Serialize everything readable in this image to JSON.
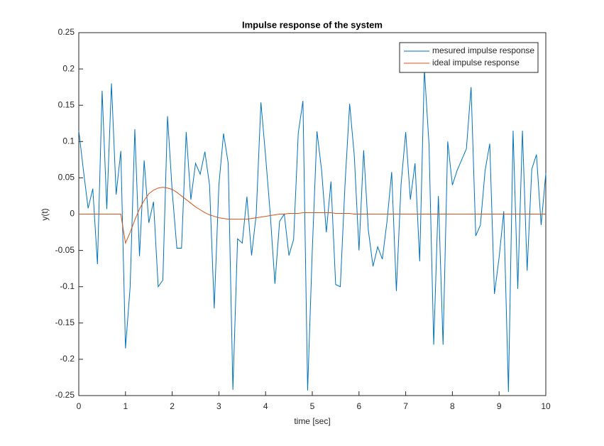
{
  "chart_data": {
    "type": "line",
    "title": "Impulse response of the system",
    "xlabel": "time [sec]",
    "ylabel": "y(t)",
    "x": [
      0,
      0.1,
      0.2,
      0.3,
      0.4,
      0.5,
      0.6,
      0.7,
      0.8,
      0.9,
      1,
      1.1,
      1.2,
      1.3,
      1.4,
      1.5,
      1.6,
      1.7,
      1.8,
      1.9,
      2,
      2.1,
      2.2,
      2.3,
      2.4,
      2.5,
      2.6,
      2.7,
      2.8,
      2.9,
      3,
      3.1,
      3.2,
      3.3,
      3.4,
      3.5,
      3.6,
      3.7,
      3.8,
      3.9,
      4,
      4.1,
      4.2,
      4.3,
      4.4,
      4.5,
      4.6,
      4.7,
      4.8,
      4.9,
      5,
      5.1,
      5.2,
      5.3,
      5.4,
      5.5,
      5.6,
      5.7,
      5.8,
      5.9,
      6,
      6.1,
      6.2,
      6.3,
      6.4,
      6.5,
      6.6,
      6.7,
      6.8,
      6.9,
      7,
      7.1,
      7.2,
      7.3,
      7.4,
      7.5,
      7.6,
      7.7,
      7.8,
      7.9,
      8,
      8.1,
      8.2,
      8.3,
      8.4,
      8.5,
      8.6,
      8.7,
      8.8,
      8.9,
      9,
      9.1,
      9.2,
      9.3,
      9.4,
      9.5,
      9.6,
      9.7,
      9.8,
      9.9,
      10
    ],
    "series": [
      {
        "name": "mesured impulse response",
        "color": "#0072BD",
        "values": [
          0.115,
          0.06,
          0.008,
          0.035,
          -0.069,
          0.17,
          0.007,
          0.18,
          0.027,
          0.087,
          -0.185,
          -0.1,
          0.117,
          -0.058,
          0.074,
          -0.012,
          0.017,
          -0.1,
          -0.091,
          0.135,
          0.032,
          -0.047,
          -0.047,
          0.113,
          0.02,
          0.07,
          0.055,
          0.086,
          0.04,
          -0.13,
          0.04,
          0.111,
          0.07,
          -0.242,
          -0.034,
          -0.04,
          0.024,
          -0.057,
          0.0,
          0.154,
          0.08,
          0.0,
          -0.096,
          -0.01,
          0.0,
          -0.057,
          -0.035,
          0.112,
          0.156,
          -0.243,
          -0.05,
          0.114,
          0.06,
          -0.025,
          0.045,
          -0.097,
          -0.1,
          0.04,
          0.152,
          0.08,
          -0.05,
          0.088,
          -0.022,
          -0.072,
          -0.045,
          -0.062,
          -0.01,
          0.058,
          -0.106,
          0.04,
          0.113,
          0.02,
          0.07,
          -0.065,
          0.2,
          0.095,
          -0.18,
          0.025,
          -0.18,
          0.1,
          0.04,
          0.06,
          0.075,
          0.09,
          0.175,
          -0.03,
          -0.015,
          0.06,
          0.097,
          -0.11,
          -0.06,
          0.004,
          -0.245,
          0.115,
          -0.103,
          0.115,
          -0.078,
          0.062,
          0.082,
          -0.015,
          0.056
        ]
      },
      {
        "name": "ideal impulse response",
        "color": "#D95319",
        "values": [
          0,
          0,
          0,
          0,
          0,
          0,
          0,
          0,
          0,
          0,
          -0.04,
          -0.025,
          -0.008,
          0.007,
          0.019,
          0.028,
          0.033,
          0.036,
          0.037,
          0.036,
          0.034,
          0.03,
          0.025,
          0.02,
          0.015,
          0.01,
          0.006,
          0.002,
          -0.001,
          -0.003,
          -0.005,
          -0.006,
          -0.007,
          -0.007,
          -0.007,
          -0.007,
          -0.007,
          -0.006,
          -0.005,
          -0.004,
          -0.003,
          -0.002,
          -0.001,
          0,
          0,
          0.001,
          0.001,
          0.001,
          0.002,
          0.002,
          0.002,
          0.002,
          0.002,
          0.002,
          0.002,
          0.001,
          0.001,
          0.001,
          0.001,
          0,
          0,
          0,
          0,
          0,
          0,
          0,
          0,
          0,
          0,
          0,
          0,
          0,
          0,
          0,
          0,
          0,
          0,
          0,
          0,
          0,
          0,
          0,
          0,
          0,
          0,
          0,
          0,
          0,
          0,
          0,
          0,
          0,
          0,
          0,
          0,
          0,
          0,
          0,
          0,
          0,
          0
        ]
      }
    ],
    "xlim": [
      0,
      10
    ],
    "xticks": [
      0,
      1,
      2,
      3,
      4,
      5,
      6,
      7,
      8,
      9,
      10
    ],
    "ylim": [
      -0.25,
      0.25
    ],
    "yticks": [
      -0.25,
      -0.2,
      -0.15,
      -0.1,
      -0.05,
      0,
      0.05,
      0.1,
      0.15,
      0.2,
      0.25
    ],
    "legend": "top-right"
  }
}
